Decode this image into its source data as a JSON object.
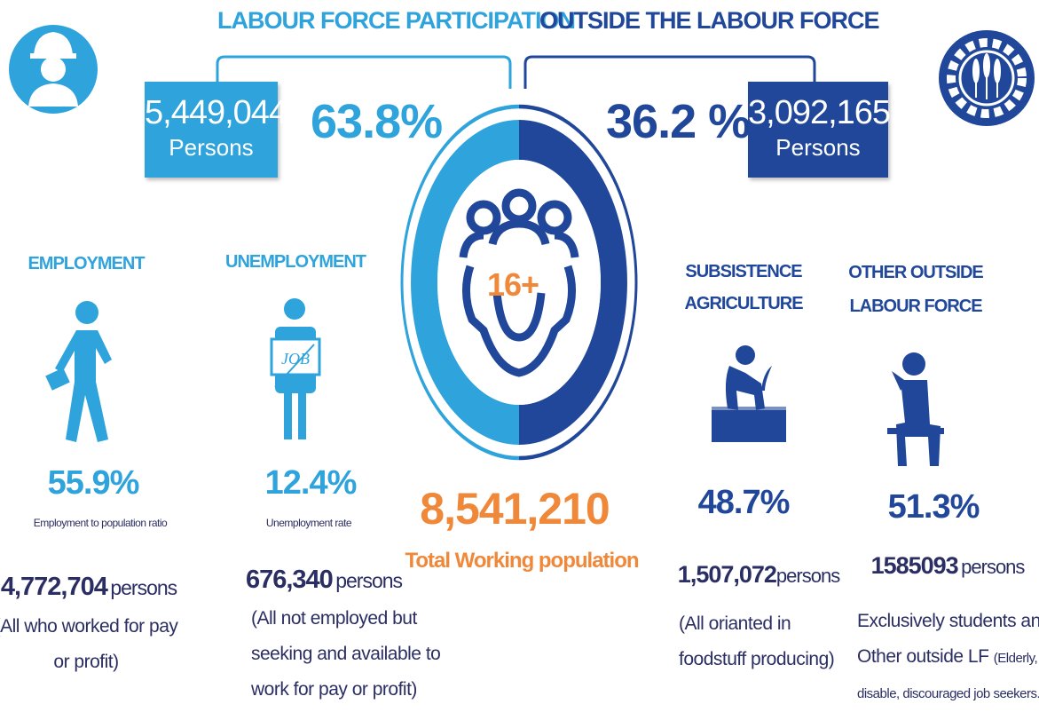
{
  "labour_force": {
    "title": "LABOUR FORCE PARTICIPATION",
    "count": "5,449,044",
    "unit": "Persons",
    "percent": "63.8%"
  },
  "outside_labour_force": {
    "title": "OUTSIDE THE LABOUR FORCE",
    "percent": "36.2 %",
    "count": "3,092,165",
    "unit": "Persons"
  },
  "center": {
    "age": "16+",
    "total": "8,541,210",
    "total_label": "Total Working population"
  },
  "employment": {
    "title": "EMPLOYMENT",
    "rate": "55.9%",
    "rate_label": "Employment to population ratio",
    "count": "4,772,704",
    "unit": "persons",
    "note": [
      "(All who worked for pay",
      "or profit)"
    ]
  },
  "unemployment": {
    "title": "UNEMPLOYMENT",
    "sign": "JOB",
    "rate": "12.4%",
    "rate_label": "Unemployment rate",
    "count": "676,340",
    "unit": "persons",
    "note": [
      "(All not employed but",
      "seeking and available to",
      "work for pay or profit)"
    ]
  },
  "subsistence": {
    "title": [
      "SUBSISTENCE",
      "AGRICULTURE"
    ],
    "rate": "48.7%",
    "count": "1,507,072",
    "unit": "persons",
    "note": [
      "(All orianted in",
      "foodstuff producing)"
    ]
  },
  "other_outside": {
    "title": [
      "OTHER OUTSIDE",
      "LABOUR FORCE"
    ],
    "rate": "51.3%",
    "count": "1585093",
    "unit": "persons",
    "note": [
      "Exclusively students and",
      "Other outside LF",
      "(Elderly,",
      "disable, discouraged job seekers...)"
    ]
  }
}
